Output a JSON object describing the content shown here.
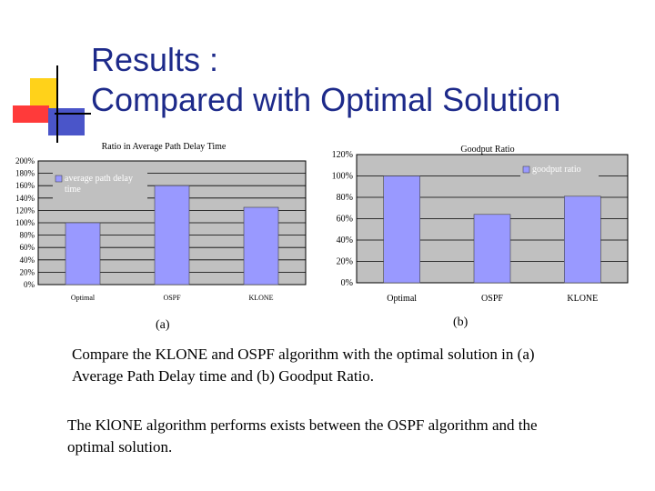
{
  "slide": {
    "title_line1": "Results :",
    "title_line2": "Compared with Optimal Solution",
    "caption_a": "(a)",
    "caption_b": "(b)",
    "paragraph1": "Compare the KLONE and OSPF algorithm with the optimal solution in (a) Average Path Delay time and (b) Goodput Ratio.",
    "paragraph2": "The KlONE algorithm performs exists between the OSPF algorithm and the optimal solution."
  },
  "colors": {
    "title": "#1d2a8a",
    "bar": "#9999ff",
    "plot_bg": "#c0c0c0",
    "legend_text": "#ffffff"
  },
  "chart_data": [
    {
      "type": "bar",
      "title": "Ratio in Average Path Delay Time",
      "categories": [
        "Optimal",
        "OSPF",
        "KLONE"
      ],
      "series": [
        {
          "name": "average path delay time",
          "values": [
            100,
            160,
            125
          ]
        }
      ],
      "ylim": [
        0,
        200
      ],
      "yticks": [
        "0%",
        "20%",
        "40%",
        "60%",
        "80%",
        "100%",
        "120%",
        "140%",
        "160%",
        "180%",
        "200%"
      ],
      "grid": true,
      "legend": "top-left"
    },
    {
      "type": "bar",
      "title": "Goodput Ratio",
      "categories": [
        "Optimal",
        "OSPF",
        "KLONE"
      ],
      "series": [
        {
          "name": "goodput ratio",
          "values": [
            100,
            64,
            81
          ]
        }
      ],
      "ylim": [
        0,
        120
      ],
      "yticks": [
        "0%",
        "20%",
        "40%",
        "60%",
        "80%",
        "100%",
        "120%"
      ],
      "grid": true,
      "legend": "top-right"
    }
  ]
}
